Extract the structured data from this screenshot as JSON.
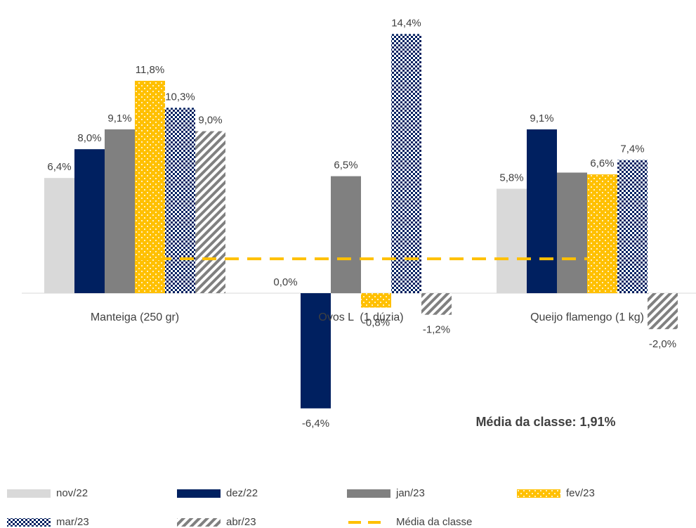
{
  "chart_data": {
    "type": "bar",
    "categories": [
      "Manteiga (250 gr)",
      "Ovos L  (1 dúzia)",
      "Queijo flamengo (1 kg)"
    ],
    "series": [
      {
        "name": "nov/22",
        "color": "#d9d9d9",
        "pattern": "solid",
        "values": [
          6.4,
          0.0,
          5.8
        ],
        "value_labels": [
          "6,4%",
          "0,0%",
          "5,8%"
        ]
      },
      {
        "name": "dez/22",
        "color": "#002060",
        "pattern": "solid",
        "values": [
          8.0,
          -6.4,
          9.1
        ],
        "value_labels": [
          "8,0%",
          "-6,4%",
          "9,1%"
        ]
      },
      {
        "name": "jan/23",
        "color": "#808080",
        "pattern": "solid",
        "values": [
          9.1,
          6.5,
          6.7
        ],
        "value_labels": [
          "9,1%",
          "6,5%",
          null
        ]
      },
      {
        "name": "fev/23",
        "color": "#ffc000",
        "pattern": "dots",
        "values": [
          11.8,
          -0.8,
          6.6
        ],
        "value_labels": [
          "11,8%",
          "-0,8%",
          "6,6%"
        ]
      },
      {
        "name": "mar/23",
        "color": "#002060",
        "pattern": "checker",
        "values": [
          10.3,
          14.4,
          7.4
        ],
        "value_labels": [
          "10,3%",
          "14,4%",
          "7,4%"
        ]
      },
      {
        "name": "abr/23",
        "color": "#808080",
        "pattern": "stripes",
        "values": [
          9.0,
          -1.2,
          -2.0
        ],
        "value_labels": [
          "9,0%",
          "-1,2%",
          "-2,0%"
        ]
      },
      {
        "name": "Média da classe",
        "type": "line",
        "color": "#ffc000",
        "dashed": true,
        "values": [
          1.91,
          1.91,
          1.91
        ]
      }
    ],
    "annotation": "Média da classe: 1,91%",
    "ylim": [
      -8,
      16
    ],
    "grid": false,
    "legend": "bottom"
  }
}
